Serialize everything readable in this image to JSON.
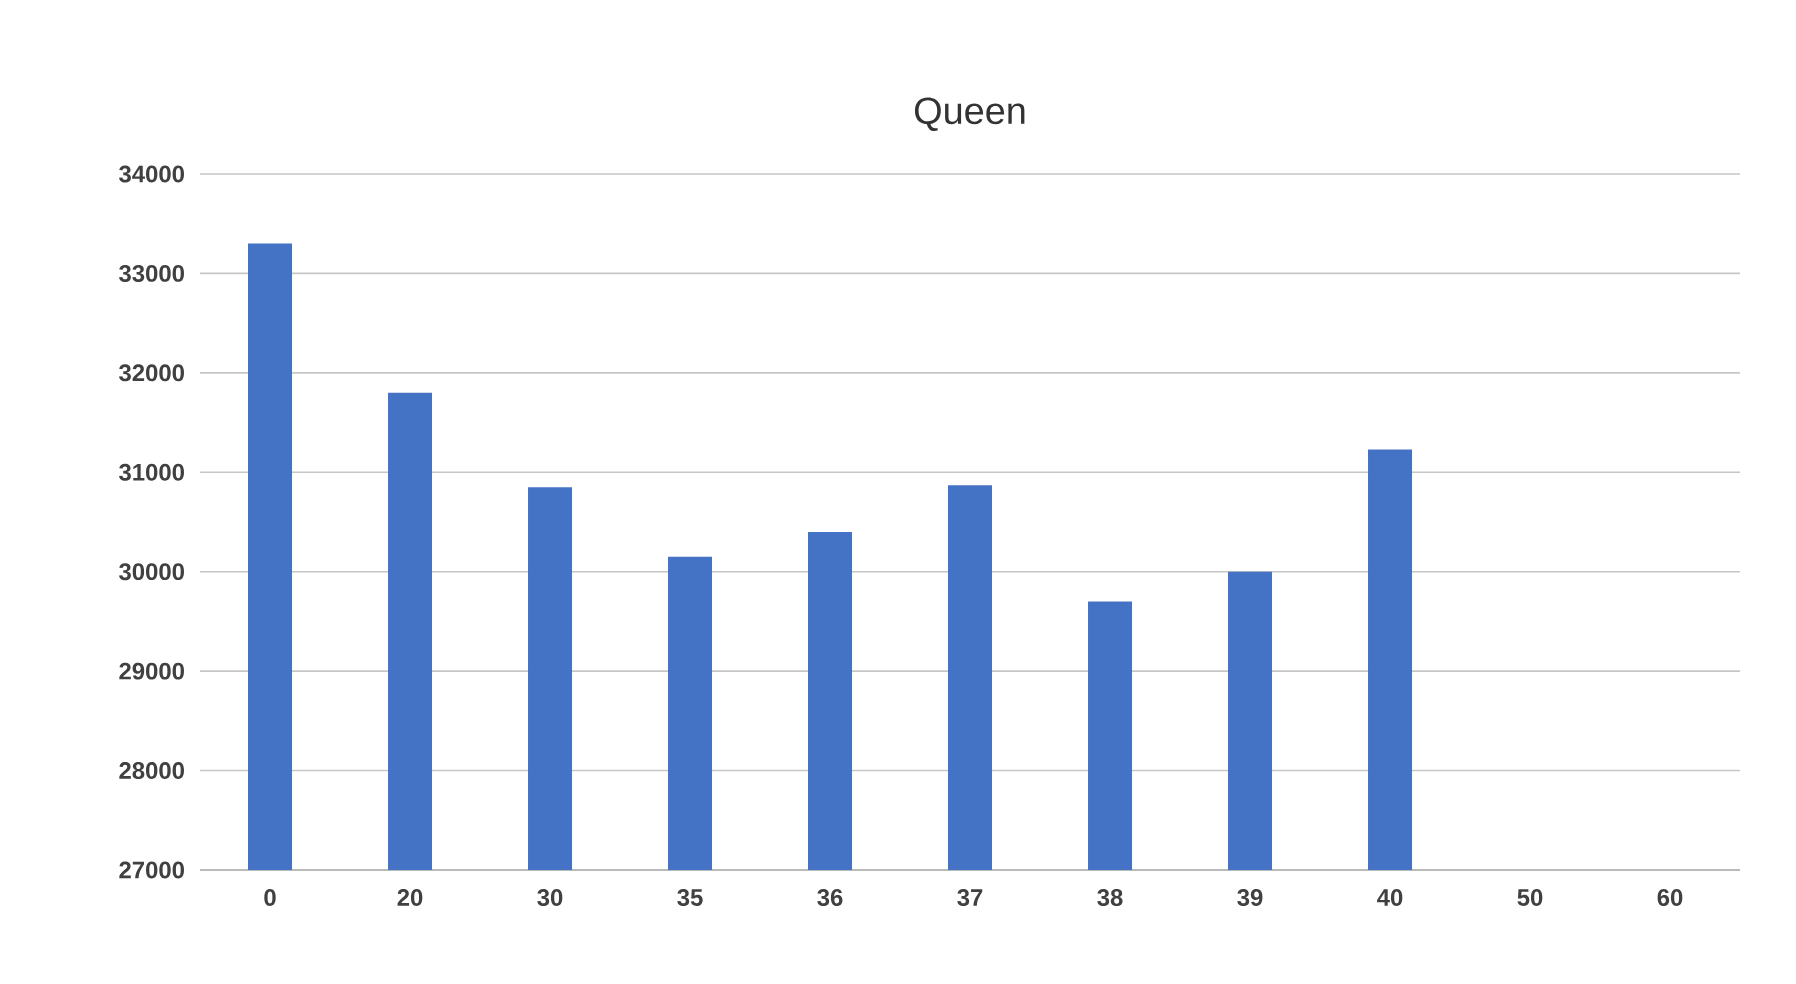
{
  "chart_data": {
    "type": "bar",
    "title": "Queen",
    "categories": [
      "0",
      "20",
      "30",
      "35",
      "36",
      "37",
      "38",
      "39",
      "40",
      "50",
      "60"
    ],
    "values": [
      33300,
      31800,
      30850,
      30150,
      30400,
      30870,
      29700,
      30000,
      31230,
      null,
      null
    ],
    "color": "#4472c4",
    "ylim": [
      27000,
      34000
    ],
    "yticks": [
      27000,
      28000,
      29000,
      30000,
      31000,
      32000,
      33000,
      34000
    ],
    "grid": "y"
  }
}
